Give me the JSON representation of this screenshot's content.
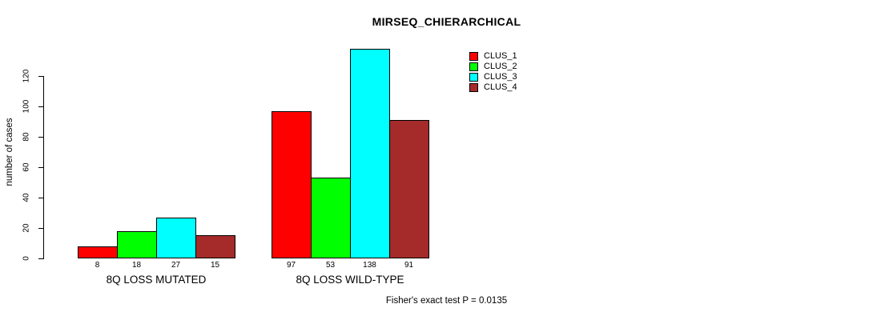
{
  "chart_data": {
    "type": "bar",
    "title": "MIRSEQ_CHIERARCHICAL",
    "ylabel": "number of cases",
    "xlabel": "",
    "categories": [
      "8Q LOSS MUTATED",
      "8Q LOSS WILD-TYPE"
    ],
    "series": [
      {
        "name": "CLUS_1",
        "color": "#FF0000",
        "values": [
          8,
          97
        ]
      },
      {
        "name": "CLUS_2",
        "color": "#00FF00",
        "values": [
          18,
          53
        ]
      },
      {
        "name": "CLUS_3",
        "color": "#00FFFF",
        "values": [
          27,
          138
        ]
      },
      {
        "name": "CLUS_4",
        "color": "#A52A2A",
        "values": [
          15,
          91
        ]
      }
    ],
    "yticks": [
      0,
      20,
      40,
      60,
      80,
      100,
      120
    ],
    "ylim": [
      0,
      140
    ],
    "grid": false,
    "bar_value_labels_shown": true,
    "legend_position": "top-right",
    "annotation": "Fisher's exact test P = 0.0135"
  }
}
